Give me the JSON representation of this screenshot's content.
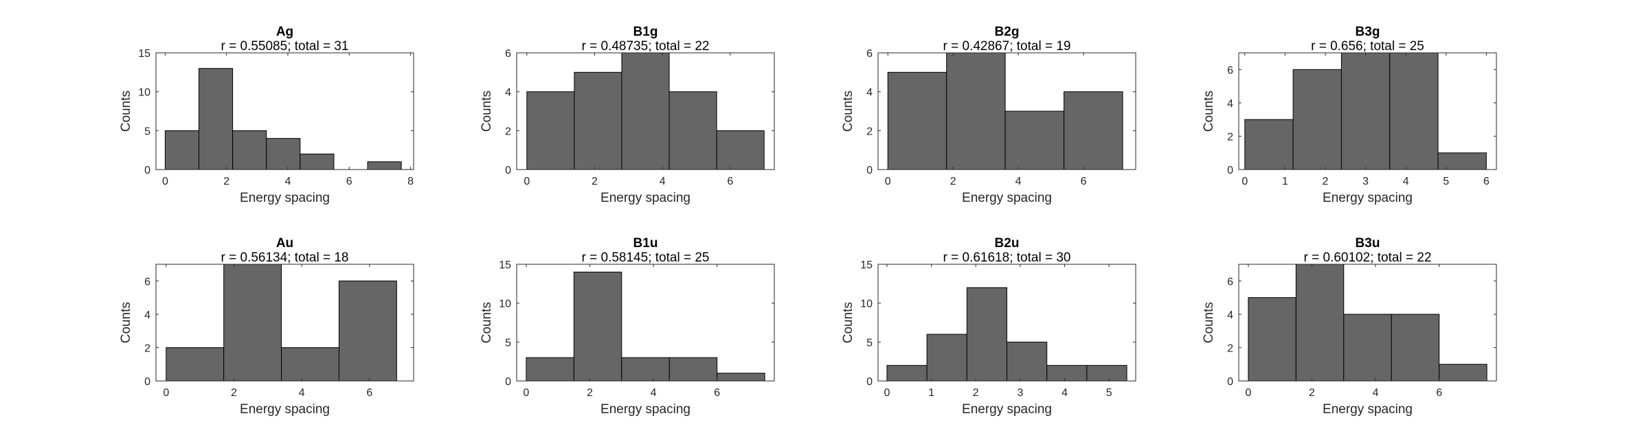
{
  "colors": {
    "bar_fill": "#666666",
    "bar_edge": "#000000",
    "axis": "#262626"
  },
  "chart_data": [
    {
      "type": "bar",
      "title": "Ag",
      "subtitle": "r = 0.55085; total = 31",
      "xlabel": "Energy spacing",
      "ylabel": "Counts",
      "xlim": [
        -0.3,
        8.1
      ],
      "ylim": [
        0,
        15
      ],
      "xticks": [
        0,
        2,
        4,
        6,
        8
      ],
      "yticks": [
        0,
        5,
        10,
        15
      ],
      "bin_edges": [
        0,
        1.1,
        2.2,
        3.3,
        4.4,
        5.5,
        6.6,
        7.7
      ],
      "values": [
        5,
        13,
        5,
        4,
        2,
        0,
        1
      ],
      "grid": false,
      "legend": "none"
    },
    {
      "type": "bar",
      "title": "B1g",
      "subtitle": "r = 0.48735; total = 22",
      "xlabel": "Energy spacing",
      "ylabel": "Counts",
      "xlim": [
        -0.3,
        7.3
      ],
      "ylim": [
        0,
        6
      ],
      "xticks": [
        0,
        2,
        4,
        6
      ],
      "yticks": [
        0,
        2,
        4,
        6
      ],
      "bin_edges": [
        0,
        1.4,
        2.8,
        4.2,
        5.6,
        7.0
      ],
      "values": [
        4,
        5,
        6,
        4,
        2
      ],
      "grid": false,
      "legend": "none"
    },
    {
      "type": "bar",
      "title": "B2g",
      "subtitle": "r = 0.42867; total = 19",
      "xlabel": "Energy spacing",
      "ylabel": "Counts",
      "xlim": [
        -0.3,
        7.6
      ],
      "ylim": [
        0,
        6
      ],
      "xticks": [
        0,
        2,
        4,
        6
      ],
      "yticks": [
        0,
        2,
        4,
        6
      ],
      "bin_edges": [
        0,
        1.8,
        3.6,
        5.4,
        7.2
      ],
      "values": [
        5,
        6,
        3,
        4
      ],
      "grid": false,
      "legend": "none"
    },
    {
      "type": "bar",
      "title": "B3g",
      "subtitle": "r = 0.656; total = 25",
      "xlabel": "Energy spacing",
      "ylabel": "Counts",
      "xlim": [
        -0.15,
        6.25
      ],
      "ylim": [
        0,
        7
      ],
      "xticks": [
        0,
        1,
        2,
        3,
        4,
        5,
        6
      ],
      "yticks": [
        0,
        2,
        4,
        6
      ],
      "bin_edges": [
        0,
        1.2,
        2.4,
        3.6,
        4.8,
        6.0
      ],
      "values": [
        3,
        6,
        7,
        7,
        1
      ],
      "grid": false,
      "legend": "none"
    },
    {
      "type": "bar",
      "title": "Au",
      "subtitle": "r = 0.56134; total = 18",
      "xlabel": "Energy spacing",
      "ylabel": "Counts",
      "xlim": [
        -0.3,
        7.3
      ],
      "ylim": [
        0,
        7
      ],
      "xticks": [
        0,
        2,
        4,
        6
      ],
      "yticks": [
        0,
        2,
        4,
        6
      ],
      "bin_edges": [
        0,
        1.7,
        3.4,
        5.1,
        6.8
      ],
      "values": [
        2,
        7,
        2,
        6
      ],
      "grid": false,
      "legend": "none"
    },
    {
      "type": "bar",
      "title": "B1u",
      "subtitle": "r = 0.58145; total = 25",
      "xlabel": "Energy spacing",
      "ylabel": "Counts",
      "xlim": [
        -0.3,
        7.8
      ],
      "ylim": [
        0,
        15
      ],
      "xticks": [
        0,
        2,
        4,
        6
      ],
      "yticks": [
        0,
        5,
        10,
        15
      ],
      "bin_edges": [
        0,
        1.5,
        3.0,
        4.5,
        6.0,
        7.5
      ],
      "values": [
        3,
        14,
        3,
        3,
        1
      ],
      "grid": false,
      "legend": "none"
    },
    {
      "type": "bar",
      "title": "B2u",
      "subtitle": "r = 0.61618; total = 30",
      "xlabel": "Energy spacing",
      "ylabel": "Counts",
      "xlim": [
        -0.2,
        5.6
      ],
      "ylim": [
        0,
        15
      ],
      "xticks": [
        0,
        1,
        2,
        3,
        4,
        5
      ],
      "yticks": [
        0,
        5,
        10,
        15
      ],
      "bin_edges": [
        0,
        0.9,
        1.8,
        2.7,
        3.6,
        4.5,
        5.4
      ],
      "values": [
        2,
        6,
        12,
        5,
        2,
        2
      ],
      "grid": false,
      "legend": "none"
    },
    {
      "type": "bar",
      "title": "B3u",
      "subtitle": "r = 0.60102; total = 22",
      "xlabel": "Energy spacing",
      "ylabel": "Counts",
      "xlim": [
        -0.3,
        7.8
      ],
      "ylim": [
        0,
        7
      ],
      "xticks": [
        0,
        2,
        4,
        6
      ],
      "yticks": [
        0,
        2,
        4,
        6
      ],
      "bin_edges": [
        0,
        1.5,
        3.0,
        4.5,
        6.0,
        7.5
      ],
      "values": [
        5,
        7,
        4,
        4,
        1
      ],
      "grid": false,
      "legend": "none"
    }
  ]
}
